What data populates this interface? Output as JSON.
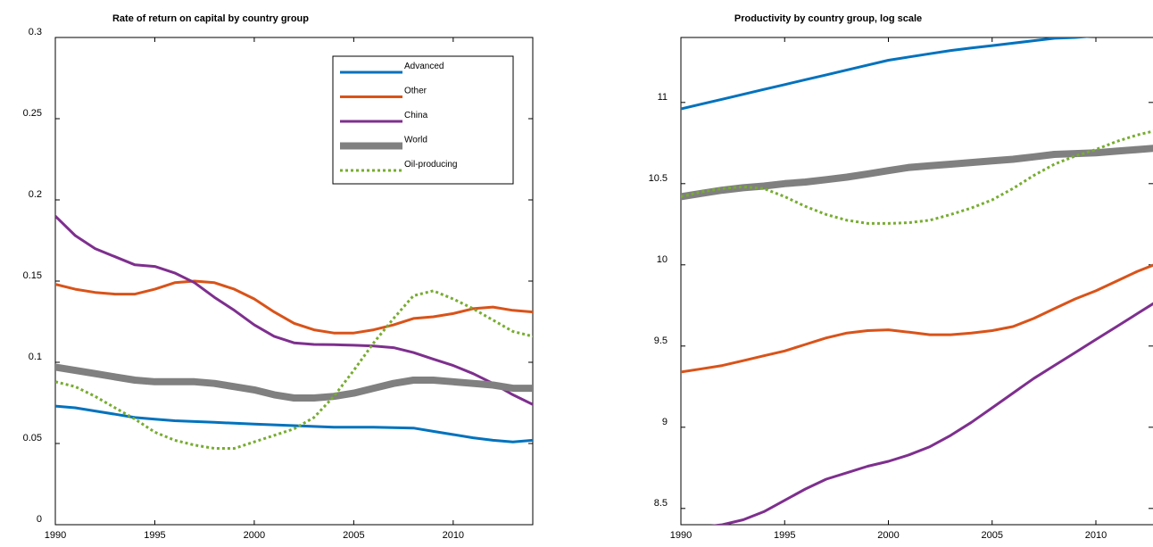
{
  "chart_data": [
    {
      "type": "line",
      "title": "Rate of return on capital by country group",
      "xlim": [
        1990,
        2014
      ],
      "ylim": [
        0,
        0.3
      ],
      "xticks": [
        1990,
        1995,
        2000,
        2005,
        2010
      ],
      "yticks": [
        0,
        0.05,
        0.1,
        0.15,
        0.2,
        0.25,
        0.3
      ],
      "ytick_labels": [
        "0",
        "0.05",
        "0.1",
        "0.15",
        "0.2",
        "0.25",
        "0.3"
      ],
      "grid": false,
      "legend_position": "top-right",
      "x": [
        1990,
        1991,
        1992,
        1993,
        1994,
        1995,
        1996,
        1997,
        1998,
        1999,
        2000,
        2001,
        2002,
        2003,
        2004,
        2005,
        2006,
        2007,
        2008,
        2009,
        2010,
        2011,
        2012,
        2013,
        2014
      ],
      "series": [
        {
          "name": "Advanced",
          "color": "#0072BD",
          "style": "solid",
          "width": "thin",
          "values": [
            0.073,
            0.072,
            0.07,
            0.068,
            0.066,
            0.065,
            0.064,
            0.0635,
            0.063,
            0.0625,
            0.062,
            0.0615,
            0.061,
            0.0605,
            0.06,
            0.06,
            0.06,
            0.0598,
            0.0595,
            0.0575,
            0.0555,
            0.0535,
            0.052,
            0.051,
            0.052
          ]
        },
        {
          "name": "Other",
          "color": "#D95319",
          "style": "solid",
          "width": "thin",
          "values": [
            0.148,
            0.145,
            0.143,
            0.142,
            0.142,
            0.145,
            0.149,
            0.15,
            0.149,
            0.145,
            0.139,
            0.131,
            0.124,
            0.12,
            0.118,
            0.118,
            0.12,
            0.123,
            0.127,
            0.128,
            0.13,
            0.133,
            0.134,
            0.132,
            0.131
          ]
        },
        {
          "name": "China",
          "color": "#7E2F8E",
          "style": "solid",
          "width": "thin",
          "values": [
            0.19,
            0.178,
            0.17,
            0.165,
            0.16,
            0.159,
            0.155,
            0.149,
            0.14,
            0.132,
            0.123,
            0.116,
            0.112,
            0.111,
            0.1108,
            0.1105,
            0.11,
            0.109,
            0.106,
            0.102,
            0.098,
            0.093,
            0.087,
            0.08,
            0.074
          ]
        },
        {
          "name": "World",
          "color": "#808080",
          "style": "solid",
          "width": "thick",
          "values": [
            0.097,
            0.095,
            0.093,
            0.091,
            0.089,
            0.088,
            0.088,
            0.088,
            0.087,
            0.085,
            0.083,
            0.08,
            0.078,
            0.078,
            0.079,
            0.081,
            0.084,
            0.087,
            0.089,
            0.089,
            0.088,
            0.087,
            0.086,
            0.084,
            0.084
          ]
        },
        {
          "name": "Oil-producing",
          "color": "#77AC30",
          "style": "dotted",
          "width": "thin",
          "values": [
            0.088,
            0.085,
            0.079,
            0.072,
            0.065,
            0.057,
            0.052,
            0.049,
            0.047,
            0.047,
            0.051,
            0.055,
            0.059,
            0.066,
            0.079,
            0.095,
            0.112,
            0.127,
            0.141,
            0.144,
            0.139,
            0.133,
            0.126,
            0.119,
            0.116
          ]
        }
      ]
    },
    {
      "type": "line",
      "title": "Productivity by country group, log scale",
      "xlim": [
        1990,
        2014
      ],
      "ylim": [
        8.4,
        11.4
      ],
      "xticks": [
        1990,
        1995,
        2000,
        2005,
        2010
      ],
      "yticks": [
        8.5,
        9,
        9.5,
        10,
        10.5,
        11
      ],
      "ytick_labels": [
        "8.5",
        "9",
        "9.5",
        "10",
        "10.5",
        "11"
      ],
      "grid": false,
      "x": [
        1990,
        1991,
        1992,
        1993,
        1994,
        1995,
        1996,
        1997,
        1998,
        1999,
        2000,
        2001,
        2002,
        2003,
        2004,
        2005,
        2006,
        2007,
        2008,
        2009,
        2010,
        2011,
        2012,
        2013,
        2014
      ],
      "series": [
        {
          "color": "#0072BD",
          "style": "solid",
          "width": "thin",
          "values": [
            10.96,
            10.99,
            11.02,
            11.05,
            11.08,
            11.11,
            11.14,
            11.17,
            11.2,
            11.23,
            11.26,
            11.28,
            11.3,
            11.32,
            11.335,
            11.35,
            11.365,
            11.38,
            11.395,
            11.4,
            11.41,
            11.42,
            11.43,
            11.44,
            11.45
          ]
        },
        {
          "color": "#808080",
          "style": "solid",
          "width": "thick",
          "values": [
            10.42,
            10.44,
            10.46,
            10.475,
            10.485,
            10.5,
            10.51,
            10.525,
            10.54,
            10.56,
            10.58,
            10.6,
            10.61,
            10.62,
            10.63,
            10.64,
            10.65,
            10.665,
            10.68,
            10.685,
            10.69,
            10.7,
            10.71,
            10.72,
            10.75
          ]
        },
        {
          "color": "#77AC30",
          "style": "dotted",
          "width": "thin",
          "values": [
            10.42,
            10.45,
            10.47,
            10.48,
            10.47,
            10.42,
            10.36,
            10.31,
            10.275,
            10.255,
            10.255,
            10.26,
            10.275,
            10.31,
            10.35,
            10.4,
            10.47,
            10.55,
            10.62,
            10.67,
            10.71,
            10.76,
            10.8,
            10.83,
            10.86
          ]
        },
        {
          "color": "#D95319",
          "style": "solid",
          "width": "thin",
          "values": [
            9.34,
            9.36,
            9.38,
            9.41,
            9.44,
            9.47,
            9.51,
            9.55,
            9.58,
            9.595,
            9.6,
            9.585,
            9.57,
            9.57,
            9.58,
            9.595,
            9.62,
            9.67,
            9.73,
            9.79,
            9.84,
            9.9,
            9.96,
            10.01,
            10.06
          ]
        },
        {
          "color": "#7E2F8E",
          "style": "solid",
          "width": "thin",
          "values": [
            8.38,
            8.385,
            8.4,
            8.43,
            8.48,
            8.55,
            8.62,
            8.68,
            8.72,
            8.76,
            8.79,
            8.83,
            8.88,
            8.95,
            9.03,
            9.12,
            9.21,
            9.3,
            9.38,
            9.46,
            9.54,
            9.62,
            9.7,
            9.78,
            9.86
          ]
        }
      ]
    }
  ]
}
